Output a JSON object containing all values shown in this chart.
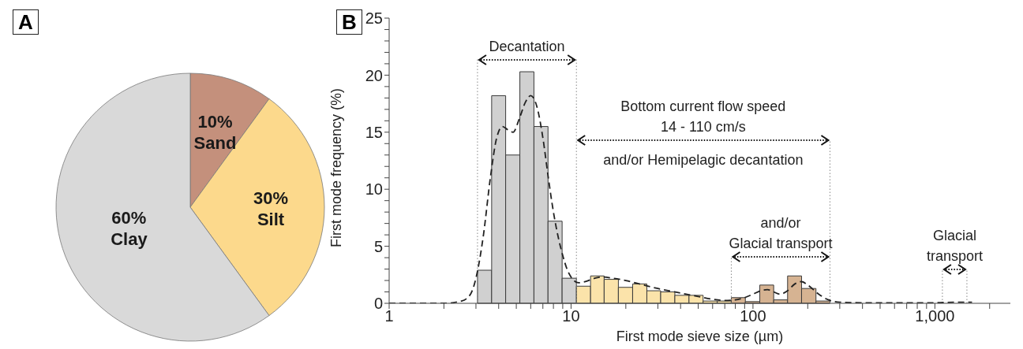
{
  "chart_data": [
    {
      "type": "pie",
      "title": "A",
      "categories": [
        "Sand",
        "Silt",
        "Clay"
      ],
      "values": [
        10,
        30,
        60
      ],
      "colors": [
        "#c4907c",
        "#fcd98c",
        "#d9d9d9"
      ],
      "value_labels": [
        "10%",
        "30%",
        "60%"
      ]
    },
    {
      "type": "histogram",
      "title": "B",
      "xlabel": "First mode sieve size (µm)",
      "ylabel": "First mode frequency (%)",
      "log": "x",
      "bins": [
        3.06,
        3.66,
        4.37,
        5.23,
        6.25,
        7.47,
        8.93,
        10.7,
        12.8,
        15.2,
        18.2,
        21.8,
        26.1,
        31.1,
        37.2,
        44.5,
        53.2,
        63.6,
        76,
        90.8,
        109,
        130,
        155,
        185,
        222,
        265
      ],
      "values": [
        2.9,
        18.2,
        13,
        20.3,
        15.5,
        7.2,
        2.2,
        1.5,
        2.4,
        2.1,
        1.4,
        1.7,
        1.1,
        1,
        0.7,
        0.7,
        0.2,
        0.2,
        0.5,
        0.15,
        1.6,
        0.3,
        2.4,
        1.3,
        0.2
      ],
      "colors": [
        "#d0d0d0",
        "#d0d0d0",
        "#d0d0d0",
        "#d0d0d0",
        "#d0d0d0",
        "#d0d0d0",
        "#d0d0d0",
        "#fbe3aa",
        "#fbe3aa",
        "#fbe3aa",
        "#fbe3aa",
        "#fbe3aa",
        "#fbe3aa",
        "#fbe3aa",
        "#fbe3aa",
        "#fbe3aa",
        "#fbe3aa",
        "#fbe3aa",
        "#d6b392",
        "#d6b392",
        "#d6b392",
        "#d6b392",
        "#d6b392",
        "#d6b392",
        "#d6b392"
      ],
      "series": [
        {
          "type": "line",
          "color": "#222222",
          "line_style": "dashed",
          "x": [
            1,
            1.5,
            2,
            2.5,
            2.8,
            3.0,
            3.3,
            3.6,
            3.9,
            4.2,
            4.5,
            4.8,
            5.2,
            5.6,
            6.0,
            6.5,
            7.0,
            7.5,
            8.0,
            8.5,
            9.0,
            9.5,
            10,
            11,
            12,
            13.5,
            15,
            17,
            20,
            25,
            30,
            40,
            50,
            60,
            70,
            80,
            90,
            100,
            110,
            120,
            130,
            141,
            155,
            170,
            185,
            200,
            230,
            260,
            300,
            400,
            600,
            1000,
            1300,
            1600
          ],
          "values": [
            0,
            0,
            0,
            0.2,
            0.8,
            2.2,
            6,
            11,
            14.5,
            15.5,
            15.2,
            15,
            16.2,
            17.6,
            18.2,
            17.2,
            14.5,
            11,
            8,
            5.8,
            4.2,
            3,
            2.3,
            1.8,
            1.9,
            2.2,
            2.3,
            2.2,
            2,
            1.6,
            1.3,
            0.9,
            0.6,
            0.35,
            0.25,
            0.3,
            0.5,
            0.8,
            1.1,
            1.2,
            1.0,
            0.8,
            1.1,
            1.7,
            1.9,
            1.6,
            0.8,
            0.3,
            0.1,
            0.05,
            0.05,
            0.05,
            0.1,
            0.1
          ]
        }
      ],
      "xlim": [
        1,
        2600
      ],
      "xticks": [
        1,
        {
          "value": 2,
          "label": null
        },
        {
          "value": 3,
          "label": null
        },
        {
          "value": 4,
          "label": null
        },
        {
          "value": 5,
          "label": null
        },
        {
          "value": 6,
          "label": null
        },
        {
          "value": 7,
          "label": null
        },
        {
          "value": 8,
          "label": null
        },
        {
          "value": 9,
          "label": null
        },
        10,
        {
          "value": 20,
          "label": null
        },
        {
          "value": 30,
          "label": null
        },
        {
          "value": 40,
          "label": null
        },
        {
          "value": 50,
          "label": null
        },
        {
          "value": 60,
          "label": null
        },
        {
          "value": 70,
          "label": null
        },
        {
          "value": 80,
          "label": null
        },
        {
          "value": 90,
          "label": null
        },
        100,
        {
          "value": 200,
          "label": null
        },
        {
          "value": 300,
          "label": null
        },
        {
          "value": 400,
          "label": null
        },
        {
          "value": 500,
          "label": null
        },
        {
          "value": 600,
          "label": null
        },
        {
          "value": 700,
          "label": null
        },
        {
          "value": 800,
          "label": null
        },
        {
          "value": 900,
          "label": null
        },
        {
          "value": 1000,
          "label": "1,000"
        },
        {
          "value": 2000,
          "label": null
        }
      ],
      "ylim": [
        0,
        25
      ],
      "yticks": [
        0,
        {
          "value": 1,
          "label": null
        },
        {
          "value": 2,
          "label": null
        },
        {
          "value": 3,
          "label": null
        },
        {
          "value": 4,
          "label": null
        },
        5,
        {
          "value": 6,
          "label": null
        },
        {
          "value": 7,
          "label": null
        },
        {
          "value": 8,
          "label": null
        },
        {
          "value": 9,
          "label": null
        },
        10,
        {
          "value": 11,
          "label": null
        },
        {
          "value": 12,
          "label": null
        },
        {
          "value": 13,
          "label": null
        },
        {
          "value": 14,
          "label": null
        },
        15,
        {
          "value": 16,
          "label": null
        },
        {
          "value": 17,
          "label": null
        },
        {
          "value": 18,
          "label": null
        },
        {
          "value": 19,
          "label": null
        },
        20,
        {
          "value": 21,
          "label": null
        },
        {
          "value": 22,
          "label": null
        },
        {
          "value": 23,
          "label": null
        },
        {
          "value": 24,
          "label": null
        },
        25
      ],
      "ref_lines": [
        {
          "axis": "x",
          "value": 3.06,
          "color": "#888888",
          "line_style": "dotted"
        },
        {
          "axis": "x",
          "value": 10.7,
          "color": "#888888",
          "line_style": "dotted"
        },
        {
          "axis": "x",
          "value": 76,
          "color": "#888888",
          "line_style": "dotted"
        },
        {
          "axis": "x",
          "value": 265,
          "color": "#888888",
          "line_style": "dotted"
        },
        {
          "axis": "x",
          "value": 1100,
          "color": "#888888",
          "line_style": "dotted"
        },
        {
          "axis": "x",
          "value": 1500,
          "color": "#888888",
          "line_style": "dotted"
        }
      ],
      "annotations": [
        "Decantation",
        "Bottom current flow speed\n14 - 110 cm/s",
        "and/or Hemipelagic decantation",
        "and/or\nGlacial transport",
        "Glacial\ntransport"
      ]
    }
  ]
}
